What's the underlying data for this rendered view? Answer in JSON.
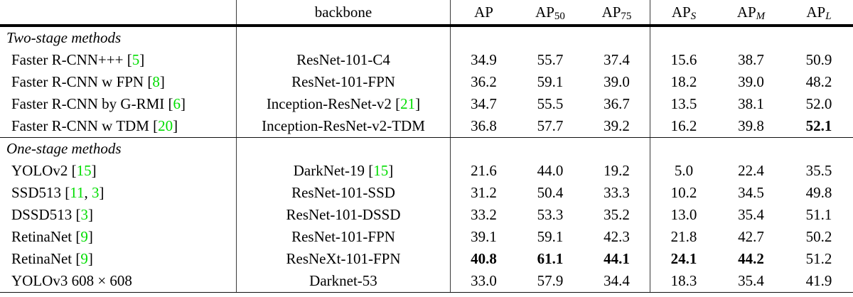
{
  "colors": {
    "citation": "#00dd00",
    "text": "#000000",
    "rule": "#000000"
  },
  "header": {
    "method": "",
    "backbone": "backbone",
    "metrics": [
      {
        "base": "AP",
        "sub": ""
      },
      {
        "base": "AP",
        "sub": "50"
      },
      {
        "base": "AP",
        "sub": "75"
      },
      {
        "base": "AP",
        "sub": "S",
        "it": true
      },
      {
        "base": "AP",
        "sub": "M",
        "it": true
      },
      {
        "base": "AP",
        "sub": "L",
        "it": true
      }
    ]
  },
  "sections": [
    {
      "label": "Two-stage methods",
      "rows": [
        {
          "method": [
            {
              "t": "Faster R-CNN+++ ["
            },
            {
              "t": "5",
              "g": true
            },
            {
              "t": "]"
            }
          ],
          "backbone": [
            {
              "t": "ResNet-101-C4"
            }
          ],
          "values": [
            "34.9",
            "55.7",
            "37.4",
            "15.6",
            "38.7",
            "50.9"
          ]
        },
        {
          "method": [
            {
              "t": "Faster R-CNN w FPN ["
            },
            {
              "t": "8",
              "g": true
            },
            {
              "t": "]"
            }
          ],
          "backbone": [
            {
              "t": "ResNet-101-FPN"
            }
          ],
          "values": [
            "36.2",
            "59.1",
            "39.0",
            "18.2",
            "39.0",
            "48.2"
          ]
        },
        {
          "method": [
            {
              "t": "Faster R-CNN by G-RMI ["
            },
            {
              "t": "6",
              "g": true
            },
            {
              "t": "]"
            }
          ],
          "backbone": [
            {
              "t": "Inception-ResNet-v2 ["
            },
            {
              "t": "21",
              "g": true
            },
            {
              "t": "]"
            }
          ],
          "values": [
            "34.7",
            "55.5",
            "36.7",
            "13.5",
            "38.1",
            "52.0"
          ]
        },
        {
          "method": [
            {
              "t": "Faster R-CNN w TDM ["
            },
            {
              "t": "20",
              "g": true
            },
            {
              "t": "]"
            }
          ],
          "backbone": [
            {
              "t": "Inception-ResNet-v2-TDM"
            }
          ],
          "values": [
            "36.8",
            "57.7",
            "39.2",
            "16.2",
            "39.8",
            "52.1"
          ],
          "bold": [
            false,
            false,
            false,
            false,
            false,
            true
          ]
        }
      ]
    },
    {
      "label": "One-stage methods",
      "rows": [
        {
          "method": [
            {
              "t": "YOLOv2 ["
            },
            {
              "t": "15",
              "g": true
            },
            {
              "t": "]"
            }
          ],
          "backbone": [
            {
              "t": "DarkNet-19 ["
            },
            {
              "t": "15",
              "g": true
            },
            {
              "t": "]"
            }
          ],
          "values": [
            "21.6",
            "44.0",
            "19.2",
            "5.0",
            "22.4",
            "35.5"
          ]
        },
        {
          "method": [
            {
              "t": "SSD513 ["
            },
            {
              "t": "11",
              "g": true
            },
            {
              "t": ", "
            },
            {
              "t": "3",
              "g": true
            },
            {
              "t": "]"
            }
          ],
          "backbone": [
            {
              "t": "ResNet-101-SSD"
            }
          ],
          "values": [
            "31.2",
            "50.4",
            "33.3",
            "10.2",
            "34.5",
            "49.8"
          ]
        },
        {
          "method": [
            {
              "t": "DSSD513 ["
            },
            {
              "t": "3",
              "g": true
            },
            {
              "t": "]"
            }
          ],
          "backbone": [
            {
              "t": "ResNet-101-DSSD"
            }
          ],
          "values": [
            "33.2",
            "53.3",
            "35.2",
            "13.0",
            "35.4",
            "51.1"
          ]
        },
        {
          "method": [
            {
              "t": "RetinaNet ["
            },
            {
              "t": "9",
              "g": true
            },
            {
              "t": "]"
            }
          ],
          "backbone": [
            {
              "t": "ResNet-101-FPN"
            }
          ],
          "values": [
            "39.1",
            "59.1",
            "42.3",
            "21.8",
            "42.7",
            "50.2"
          ]
        },
        {
          "method": [
            {
              "t": "RetinaNet ["
            },
            {
              "t": "9",
              "g": true
            },
            {
              "t": "]"
            }
          ],
          "backbone": [
            {
              "t": "ResNeXt-101-FPN"
            }
          ],
          "values": [
            "40.8",
            "61.1",
            "44.1",
            "24.1",
            "44.2",
            "51.2"
          ],
          "bold": [
            true,
            true,
            true,
            true,
            true,
            false
          ]
        },
        {
          "method": [
            {
              "t": "YOLOv3 608 × 608"
            }
          ],
          "backbone": [
            {
              "t": "Darknet-53"
            }
          ],
          "values": [
            "33.0",
            "57.9",
            "34.4",
            "18.3",
            "35.4",
            "41.9"
          ]
        }
      ]
    }
  ]
}
